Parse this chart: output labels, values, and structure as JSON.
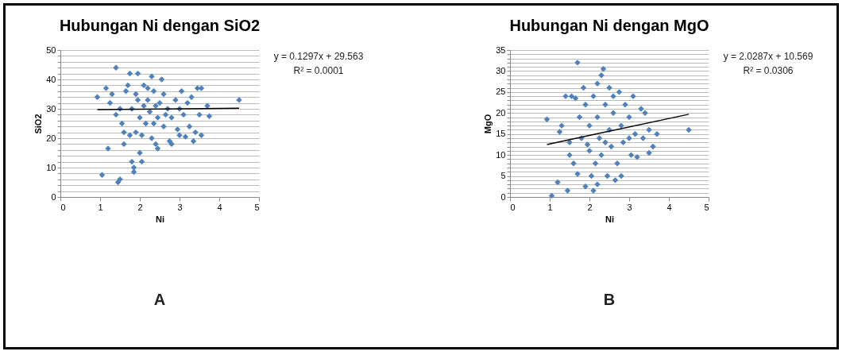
{
  "chart_data": [
    {
      "type": "scatter",
      "title": "Hubungan Ni dengan SiO2",
      "xlabel": "Ni",
      "ylabel": "SiO2",
      "xlim": [
        0,
        5
      ],
      "xticks": [
        0,
        1,
        2,
        3,
        4,
        5
      ],
      "ylim": [
        0,
        50
      ],
      "yticks": [
        0,
        {
          "value": 2,
          "label": null
        },
        {
          "value": 4,
          "label": null
        },
        {
          "value": 6,
          "label": null
        },
        {
          "value": 8,
          "label": null
        },
        10,
        {
          "value": 12,
          "label": null
        },
        {
          "value": 14,
          "label": null
        },
        {
          "value": 16,
          "label": null
        },
        {
          "value": 18,
          "label": null
        },
        20,
        {
          "value": 22,
          "label": null
        },
        {
          "value": 24,
          "label": null
        },
        {
          "value": 26,
          "label": null
        },
        {
          "value": 28,
          "label": null
        },
        30,
        {
          "value": 32,
          "label": null
        },
        {
          "value": 34,
          "label": null
        },
        {
          "value": 36,
          "label": null
        },
        {
          "value": 38,
          "label": null
        },
        40,
        {
          "value": 42,
          "label": null
        },
        {
          "value": 44,
          "label": null
        },
        {
          "value": 46,
          "label": null
        },
        {
          "value": 48,
          "label": null
        },
        50
      ],
      "grid": "y",
      "marker": "diamond",
      "annotations": [
        "y = 0.1297x + 29.563",
        "R² = 0.0001",
        "A"
      ],
      "series": [
        {
          "color": "#4f81bd",
          "x": [
            0.93,
            1.05,
            1.15,
            1.2,
            1.25,
            1.3,
            1.4,
            1.4,
            1.45,
            1.5,
            1.5,
            1.55,
            1.6,
            1.6,
            1.65,
            1.7,
            1.75,
            1.75,
            1.8,
            1.8,
            1.85,
            1.85,
            1.9,
            1.9,
            1.95,
            2.0,
            2.0,
            2.05,
            2.05,
            2.1,
            2.1,
            2.15,
            2.2,
            2.25,
            2.3,
            2.3,
            2.35,
            2.4,
            2.45,
            2.45,
            2.5,
            2.55,
            2.6,
            2.6,
            2.7,
            2.75,
            2.8,
            2.8,
            2.9,
            2.95,
            3.0,
            3.05,
            3.1,
            3.15,
            3.2,
            3.25,
            3.3,
            3.35,
            3.4,
            3.45,
            3.5,
            3.55,
            3.55,
            3.7,
            3.75,
            4.5,
            2.2,
            2.4,
            1.95,
            2.65,
            3.0,
            2.35
          ],
          "values": [
            34,
            7.5,
            37,
            16.5,
            32,
            35,
            44,
            28,
            5,
            6,
            30,
            25,
            18,
            22,
            36,
            38,
            42,
            21,
            30,
            12,
            10,
            8.5,
            22,
            35,
            42,
            27,
            15,
            12,
            21,
            38,
            31,
            25,
            33,
            29,
            41,
            20,
            36,
            18,
            16.5,
            27,
            32,
            40,
            24,
            35,
            30,
            19,
            18,
            27,
            33,
            23,
            21,
            36,
            28,
            20.5,
            32,
            24,
            34,
            19,
            22,
            37,
            28,
            21,
            37,
            31,
            27.5,
            33,
            37,
            31,
            33,
            28,
            30,
            25
          ]
        },
        {
          "type": "line",
          "color": "#000000",
          "marker": "none",
          "x": [
            0.93,
            4.5
          ],
          "values": [
            29.7,
            30.2
          ]
        }
      ]
    },
    {
      "type": "scatter",
      "title": "Hubungan Ni dengan MgO",
      "xlabel": "Ni",
      "ylabel": "MgO",
      "xlim": [
        0,
        5
      ],
      "xticks": [
        0,
        1,
        2,
        3,
        4,
        5
      ],
      "ylim": [
        0,
        35
      ],
      "yticks": [
        0,
        {
          "value": 1,
          "label": null
        },
        {
          "value": 2,
          "label": null
        },
        {
          "value": 3,
          "label": null
        },
        {
          "value": 4,
          "label": null
        },
        5,
        {
          "value": 6,
          "label": null
        },
        {
          "value": 7,
          "label": null
        },
        {
          "value": 8,
          "label": null
        },
        {
          "value": 9,
          "label": null
        },
        10,
        {
          "value": 11,
          "label": null
        },
        {
          "value": 12,
          "label": null
        },
        {
          "value": 13,
          "label": null
        },
        {
          "value": 14,
          "label": null
        },
        15,
        {
          "value": 16,
          "label": null
        },
        {
          "value": 17,
          "label": null
        },
        {
          "value": 18,
          "label": null
        },
        {
          "value": 19,
          "label": null
        },
        20,
        {
          "value": 21,
          "label": null
        },
        {
          "value": 22,
          "label": null
        },
        {
          "value": 23,
          "label": null
        },
        {
          "value": 24,
          "label": null
        },
        25,
        {
          "value": 26,
          "label": null
        },
        {
          "value": 27,
          "label": null
        },
        {
          "value": 28,
          "label": null
        },
        {
          "value": 29,
          "label": null
        },
        30,
        {
          "value": 31,
          "label": null
        },
        {
          "value": 32,
          "label": null
        },
        {
          "value": 33,
          "label": null
        },
        {
          "value": 34,
          "label": null
        },
        35
      ],
      "grid": "y",
      "marker": "diamond",
      "annotations": [
        "y = 2.0287x + 10.569",
        "R² = 0.0306",
        "B"
      ],
      "series": [
        {
          "color": "#4f81bd",
          "x": [
            0.93,
            1.05,
            1.2,
            1.25,
            1.3,
            1.4,
            1.45,
            1.5,
            1.5,
            1.55,
            1.6,
            1.65,
            1.7,
            1.7,
            1.75,
            1.8,
            1.85,
            1.9,
            1.9,
            2.0,
            2.0,
            2.05,
            2.1,
            2.1,
            2.15,
            2.2,
            2.2,
            2.25,
            2.3,
            2.3,
            2.35,
            2.4,
            2.45,
            2.5,
            2.5,
            2.55,
            2.6,
            2.65,
            2.7,
            2.75,
            2.8,
            2.85,
            2.9,
            3.0,
            3.05,
            3.1,
            3.15,
            3.2,
            3.3,
            3.35,
            3.4,
            3.5,
            3.5,
            3.6,
            3.7,
            4.5,
            2.4,
            2.6,
            1.95,
            2.8,
            3.0,
            2.2
          ],
          "values": [
            18.5,
            0.3,
            3.5,
            15.5,
            17,
            24,
            1.5,
            10,
            13,
            24,
            8,
            23.5,
            32,
            5.5,
            19,
            14,
            26,
            2.5,
            22,
            11,
            17,
            5,
            1.5,
            24,
            8,
            3,
            19,
            14,
            29,
            10,
            30.5,
            22,
            5,
            16,
            26,
            12,
            20,
            4,
            8,
            25,
            17,
            13,
            22,
            19,
            10,
            24,
            15,
            9.5,
            21,
            14,
            20,
            10.5,
            16,
            12,
            15,
            16,
            13,
            24,
            12.5,
            5,
            14,
            27
          ]
        },
        {
          "type": "line",
          "color": "#000000",
          "marker": "none",
          "x": [
            0.93,
            4.5
          ],
          "values": [
            12.5,
            19.7
          ]
        }
      ]
    }
  ]
}
